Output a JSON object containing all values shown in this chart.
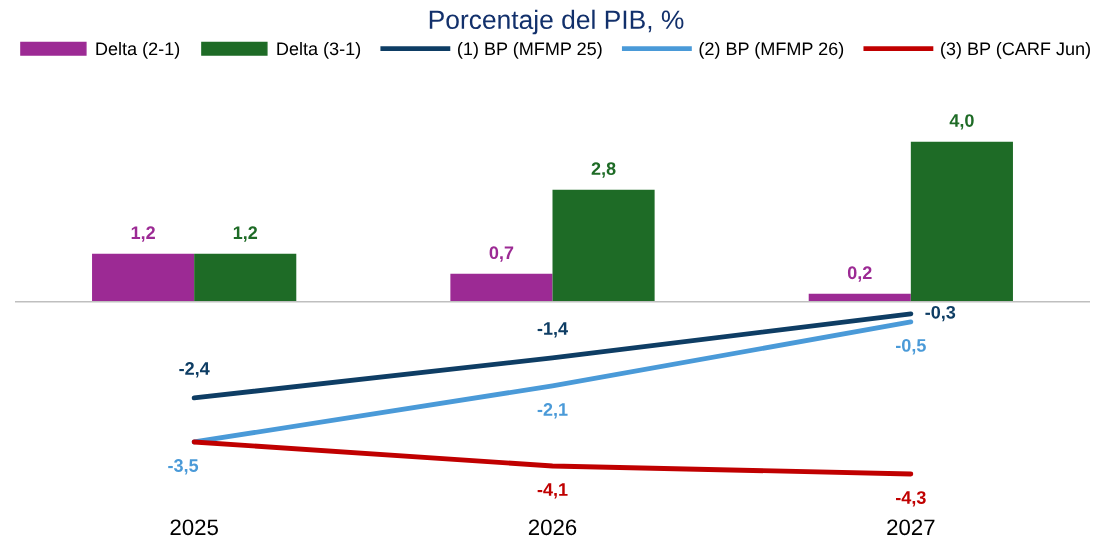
{
  "chart_data": {
    "type": "bar",
    "title": "Porcentaje del PIB, %",
    "categories": [
      "2025",
      "2026",
      "2027"
    ],
    "series": [
      {
        "name": "Delta (2-1)",
        "color": "#9c2a94",
        "values": [
          1.2,
          0.7,
          0.2
        ],
        "value_labels": [
          "1,2",
          "0,7",
          "0,2"
        ]
      },
      {
        "name": "Delta (3-1)",
        "color": "#1e6b26",
        "values": [
          1.2,
          2.8,
          4.0
        ],
        "value_labels": [
          "1,2",
          "2,8",
          "4,0"
        ]
      },
      {
        "name": "(1) BP (MFMP 25)",
        "type": "line",
        "color": "#0e3d64",
        "values": [
          -2.4,
          -1.4,
          -0.3
        ],
        "value_labels": [
          "-2,4",
          "-1,4",
          "-0,3"
        ]
      },
      {
        "name": "(2) BP (MFMP 26)",
        "type": "line",
        "color": "#4a9ad8",
        "values": [
          -3.5,
          -2.1,
          -0.5
        ],
        "value_labels": [
          "-3,5",
          "-2,1",
          "-0,5"
        ]
      },
      {
        "name": "(3) BP (CARF Jun)",
        "type": "line",
        "color": "#c00000",
        "values": [
          -3.5,
          -4.1,
          -4.3
        ],
        "value_labels": [
          null,
          "-4,1",
          "-4,3"
        ]
      }
    ],
    "tick_labels": "x",
    "grid": false,
    "legend": "top",
    "marker": "none",
    "line_style": "solid"
  }
}
